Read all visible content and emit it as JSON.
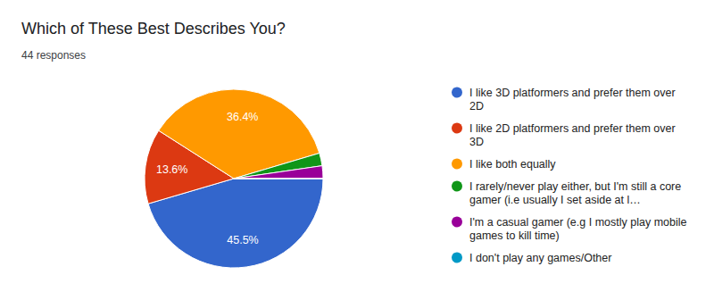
{
  "chart_data": {
    "type": "pie",
    "title": "Which of These Best Describes You?",
    "subtitle": "44 responses",
    "categories": [
      "I like 3D platformers and prefer them over 2D",
      "I like 2D platformers and prefer them over 3D",
      "I like both equally",
      "I rarely/never play either, but I'm still a core gamer (i.e usually I set aside at l…",
      "I'm a casual gamer (e.g I mostly play mobile games to kill time)",
      "I don't play any games/Other"
    ],
    "values": [
      45.5,
      13.6,
      36.4,
      2.3,
      2.3,
      0
    ],
    "value_labels": [
      "45.5%",
      "13.6%",
      "36.4%",
      null,
      null,
      null
    ],
    "colors": [
      "#3366cc",
      "#dc3912",
      "#ff9900",
      "#109618",
      "#990099",
      "#0099c6"
    ],
    "data_labels": true,
    "legend": "right"
  }
}
